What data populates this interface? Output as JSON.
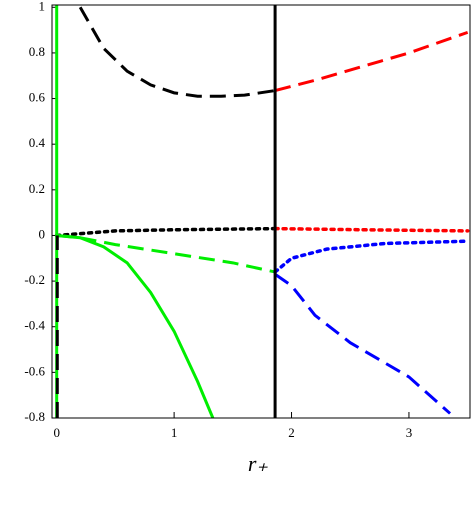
{
  "chart_data": {
    "type": "line",
    "xlabel": "r₊",
    "xlim": [
      -0.04,
      3.52
    ],
    "ylim": [
      -0.8,
      1.01
    ],
    "xticks": [
      0,
      1,
      2,
      3
    ],
    "yticks": [
      -0.8,
      -0.6,
      -0.4,
      -0.2,
      0,
      0.2,
      0.4,
      0.6,
      0.8,
      1
    ],
    "grid": false,
    "series": [
      {
        "color": "#000000",
        "dash": "dashed",
        "x": [
          0.2,
          0.4,
          0.6,
          0.8,
          1.0,
          1.2,
          1.4,
          1.6,
          1.86
        ],
        "values": [
          1.0,
          0.82,
          0.72,
          0.66,
          0.625,
          0.61,
          0.61,
          0.615,
          0.635
        ]
      },
      {
        "color": "#ff0000",
        "dash": "dashed",
        "x": [
          1.86,
          2.2,
          2.6,
          3.0,
          3.5
        ],
        "values": [
          0.635,
          0.68,
          0.74,
          0.8,
          0.89
        ]
      },
      {
        "color": "#000000",
        "dash": "dotted",
        "x": [
          0,
          0.5,
          1.0,
          1.86
        ],
        "values": [
          0.0,
          0.02,
          0.025,
          0.03
        ]
      },
      {
        "color": "#ff0000",
        "dash": "dotted",
        "x": [
          1.86,
          2.6,
          3.5
        ],
        "values": [
          0.03,
          0.025,
          0.02
        ]
      },
      {
        "color": "#00ee00",
        "dash": "dashed",
        "x": [
          0,
          0.2,
          0.5,
          1.0,
          1.5,
          1.86
        ],
        "values": [
          0.0,
          -0.01,
          -0.04,
          -0.08,
          -0.12,
          -0.16
        ]
      },
      {
        "color": "#00ee00",
        "dash": "solid",
        "x": [
          0,
          0.2,
          0.4,
          0.6,
          0.8,
          1.0,
          1.2,
          1.33
        ],
        "values": [
          0.0,
          -0.01,
          -0.05,
          -0.12,
          -0.25,
          -0.42,
          -0.64,
          -0.8
        ]
      },
      {
        "color": "#0000ff",
        "dash": "dotted",
        "x": [
          1.86,
          2.0,
          2.3,
          2.8,
          3.5
        ],
        "values": [
          -0.16,
          -0.1,
          -0.06,
          -0.035,
          -0.025
        ]
      },
      {
        "color": "#0000ff",
        "dash": "dashed",
        "x": [
          1.86,
          2.0,
          2.2,
          2.5,
          3.0,
          3.35
        ],
        "values": [
          -0.17,
          -0.22,
          -0.35,
          -0.47,
          -0.62,
          -0.78
        ]
      },
      {
        "color": "#00ee00",
        "dash": "solid",
        "x": [
          0.0,
          0.0
        ],
        "values": [
          -0.8,
          1.01
        ]
      },
      {
        "color": "#000000",
        "dash": "dashed",
        "x": [
          0.005,
          0.005
        ],
        "values": [
          -0.8,
          0.0
        ]
      },
      {
        "color": "#000000",
        "dash": "solid",
        "x": [
          1.86,
          1.86
        ],
        "values": [
          -0.8,
          1.01
        ]
      }
    ]
  }
}
